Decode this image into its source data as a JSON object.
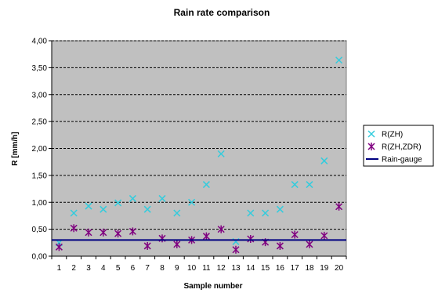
{
  "chart_data": {
    "type": "scatter",
    "title": "Rain rate comparison",
    "xlabel": "Sample number",
    "ylabel": "R  [mm/h]",
    "xlim": [
      0.5,
      20.5
    ],
    "ylim": [
      0,
      4
    ],
    "x_ticks": [
      "1",
      "2",
      "3",
      "4",
      "5",
      "6",
      "7",
      "8",
      "9",
      "10",
      "11",
      "12",
      "13",
      "14",
      "15",
      "16",
      "17",
      "18",
      "19",
      "20"
    ],
    "y_ticks": [
      "0,00",
      "0,50",
      "1,00",
      "1,50",
      "2,00",
      "2,50",
      "3,00",
      "3,50",
      "4,00"
    ],
    "grid": "horizontal dashed",
    "background": "#c0c0c0",
    "legend_position": "right",
    "series": [
      {
        "name": "R(ZH)",
        "marker": "x",
        "color": "#33ccdd",
        "x": [
          1,
          2,
          3,
          4,
          5,
          6,
          7,
          8,
          9,
          10,
          11,
          12,
          13,
          14,
          15,
          16,
          17,
          18,
          19,
          20
        ],
        "values": [
          0.25,
          0.8,
          0.93,
          0.87,
          0.99,
          1.07,
          0.87,
          1.07,
          0.8,
          1.0,
          1.33,
          1.9,
          0.27,
          0.8,
          0.8,
          0.87,
          1.33,
          1.33,
          1.77,
          3.64
        ]
      },
      {
        "name": "R(ZH,ZDR)",
        "marker": "asterisk",
        "color": "#800080",
        "x": [
          1,
          2,
          3,
          4,
          5,
          6,
          7,
          8,
          9,
          10,
          11,
          12,
          13,
          14,
          15,
          16,
          17,
          18,
          19,
          20
        ],
        "values": [
          0.17,
          0.52,
          0.44,
          0.44,
          0.42,
          0.46,
          0.19,
          0.33,
          0.22,
          0.3,
          0.37,
          0.5,
          0.12,
          0.32,
          0.26,
          0.19,
          0.4,
          0.22,
          0.38,
          0.92
        ]
      },
      {
        "name": "Rain-gauge",
        "marker": "line",
        "color": "#000080",
        "x": [
          0.5,
          20.5
        ],
        "values": [
          0.3,
          0.3
        ]
      }
    ]
  }
}
